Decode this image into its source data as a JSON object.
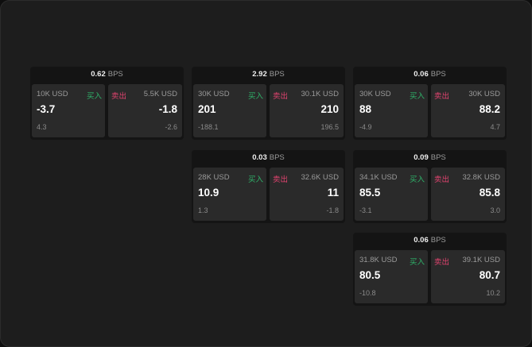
{
  "labels": {
    "unit": "BPS",
    "buy": "买入",
    "sell": "卖出"
  },
  "colors": {
    "buy": "#2fb36a",
    "sell": "#e0436f"
  },
  "cards": [
    {
      "bps": "0.62",
      "bid_size": "10K USD",
      "bid": "-3.7",
      "bid_sub": "4.3",
      "ask_size": "5.5K USD",
      "ask": "-1.8",
      "ask_sub": "-2.6"
    },
    {
      "bps": "2.92",
      "bid_size": "30K USD",
      "bid": "201",
      "bid_sub": "-188.1",
      "ask_size": "30.1K USD",
      "ask": "210",
      "ask_sub": "196.5"
    },
    {
      "bps": "0.06",
      "bid_size": "30K USD",
      "bid": "88",
      "bid_sub": "-4.9",
      "ask_size": "30K USD",
      "ask": "88.2",
      "ask_sub": "4.7"
    },
    {
      "bps": "0.03",
      "bid_size": "28K USD",
      "bid": "10.9",
      "bid_sub": "1.3",
      "ask_size": "32.6K USD",
      "ask": "11",
      "ask_sub": "-1.8"
    },
    {
      "bps": "0.09",
      "bid_size": "34.1K USD",
      "bid": "85.5",
      "bid_sub": "-3.1",
      "ask_size": "32.8K USD",
      "ask": "85.8",
      "ask_sub": "3.0"
    },
    {
      "bps": "0.06",
      "bid_size": "31.8K USD",
      "bid": "80.5",
      "bid_sub": "-10.8",
      "ask_size": "39.1K USD",
      "ask": "80.7",
      "ask_sub": "10.2"
    }
  ]
}
